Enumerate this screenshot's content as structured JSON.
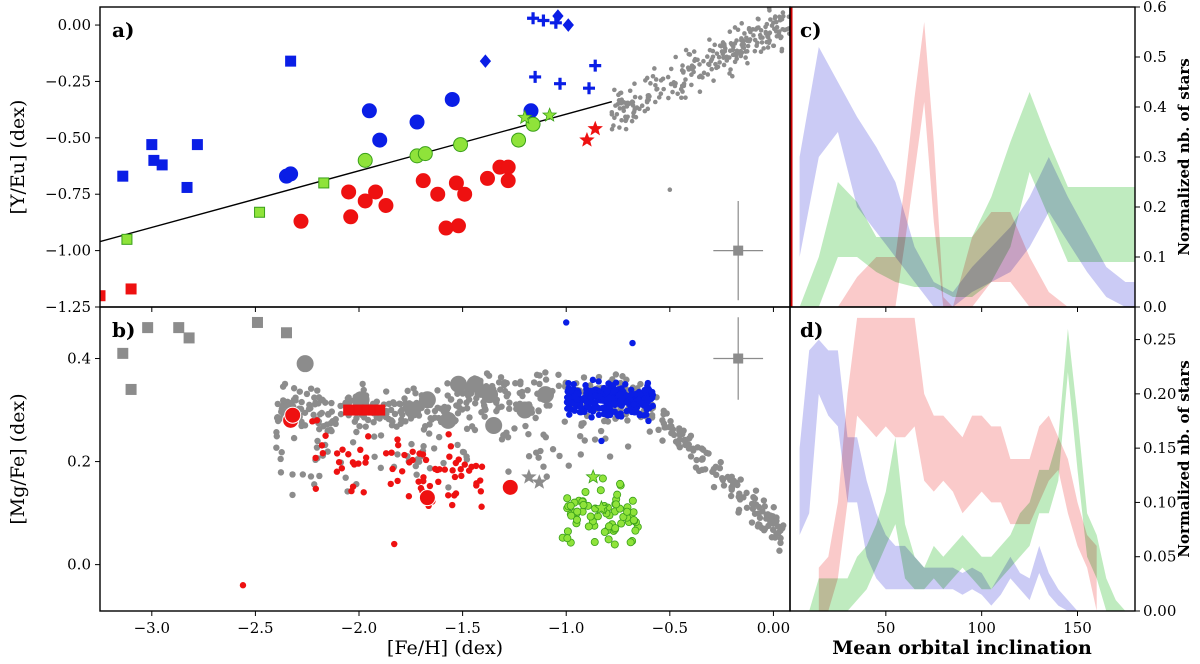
{
  "colors": {
    "blue": "#0a1ee6",
    "red": "#ee1111",
    "green": "#8fe33a",
    "green_edge": "#3aa01a",
    "gray": "#8c8c8c",
    "blue_band": "#b9b9f2",
    "red_band": "#f8b8b8",
    "green_band": "#a9e4a9",
    "olive_overlap": "#b7b38c"
  },
  "chart_data": [
    {
      "panel": "a)",
      "type": "scatter",
      "xlabel": "",
      "ylabel": "[Y/Eu] (dex)",
      "xlim": [
        -3.25,
        0.08
      ],
      "ylim": [
        -1.25,
        0.08
      ],
      "yticks": [
        "0.00",
        "−0.25",
        "−0.50",
        "−0.75",
        "−1.00",
        "−1.25"
      ],
      "fit_line": [
        [
          -3.25,
          -0.96
        ],
        [
          -0.78,
          -0.34
        ]
      ],
      "error_bar": {
        "x": -0.17,
        "y": -1.0,
        "dx": 0.12,
        "dy": 0.22
      },
      "series": [
        {
          "color": "blue",
          "marker": "square",
          "points": [
            [
              -3.14,
              -0.67
            ],
            [
              -3.0,
              -0.53
            ],
            [
              -2.99,
              -0.6
            ],
            [
              -2.95,
              -0.62
            ],
            [
              -2.83,
              -0.72
            ],
            [
              -2.78,
              -0.53
            ],
            [
              -2.33,
              -0.16
            ]
          ]
        },
        {
          "color": "blue",
          "marker": "circle",
          "points": [
            [
              -2.35,
              -0.67
            ],
            [
              -2.33,
              -0.66
            ],
            [
              -1.95,
              -0.38
            ],
            [
              -1.9,
              -0.51
            ],
            [
              -1.72,
              -0.43
            ],
            [
              -1.55,
              -0.33
            ],
            [
              -1.17,
              -0.38
            ]
          ]
        },
        {
          "color": "blue",
          "marker": "plus",
          "points": [
            [
              -1.16,
              0.03
            ],
            [
              -1.11,
              0.02
            ],
            [
              -1.05,
              0.01
            ],
            [
              -1.15,
              -0.23
            ],
            [
              -1.03,
              -0.26
            ],
            [
              -0.86,
              -0.18
            ],
            [
              -0.89,
              -0.28
            ]
          ]
        },
        {
          "color": "blue",
          "marker": "diamond",
          "points": [
            [
              -1.39,
              -0.16
            ],
            [
              -1.04,
              0.04
            ],
            [
              -0.99,
              0.0
            ]
          ]
        },
        {
          "color": "red",
          "marker": "square",
          "points": [
            [
              -3.25,
              -1.2
            ],
            [
              -3.1,
              -1.17
            ]
          ]
        },
        {
          "color": "red",
          "marker": "circle",
          "points": [
            [
              -2.28,
              -0.87
            ],
            [
              -2.05,
              -0.74
            ],
            [
              -2.04,
              -0.85
            ],
            [
              -1.97,
              -0.78
            ],
            [
              -1.92,
              -0.74
            ],
            [
              -1.69,
              -0.69
            ],
            [
              -1.62,
              -0.75
            ],
            [
              -1.53,
              -0.7
            ],
            [
              -1.49,
              -0.75
            ],
            [
              -1.38,
              -0.68
            ],
            [
              -1.28,
              -0.69
            ],
            [
              -1.58,
              -0.9
            ],
            [
              -1.52,
              -0.89
            ],
            [
              -1.87,
              -0.8
            ],
            [
              -1.32,
              -0.63
            ],
            [
              -1.28,
              -0.63
            ]
          ]
        },
        {
          "color": "red",
          "marker": "star",
          "points": [
            [
              -0.9,
              -0.51
            ],
            [
              -0.86,
              -0.46
            ]
          ]
        },
        {
          "color": "green",
          "marker": "square",
          "points": [
            [
              -3.12,
              -0.95
            ],
            [
              -2.48,
              -0.83
            ],
            [
              -2.17,
              -0.7
            ]
          ]
        },
        {
          "color": "green",
          "marker": "circle",
          "points": [
            [
              -1.97,
              -0.6
            ],
            [
              -1.72,
              -0.58
            ],
            [
              -1.68,
              -0.57
            ],
            [
              -1.51,
              -0.53
            ],
            [
              -1.23,
              -0.51
            ],
            [
              -1.16,
              -0.44
            ]
          ]
        },
        {
          "color": "green",
          "marker": "star",
          "points": [
            [
              -1.2,
              -0.41
            ],
            [
              -1.08,
              -0.4
            ]
          ]
        }
      ]
    },
    {
      "panel": "b)",
      "type": "scatter",
      "xlabel": "[Fe/H] (dex)",
      "ylabel": "[Mg/Fe] (dex)",
      "xlim": [
        -3.25,
        0.08
      ],
      "ylim": [
        -0.09,
        0.5
      ],
      "xticks": [
        "−3.0",
        "−2.5",
        "−2.0",
        "−1.5",
        "−1.0",
        "−0.5",
        "0.00"
      ],
      "yticks": [
        "0.0",
        "0.2",
        "0.4"
      ],
      "error_bar": {
        "x": -0.17,
        "y": 0.4,
        "dx": 0.12,
        "dy": 0.08
      },
      "series": [
        {
          "color": "gray",
          "marker": "square",
          "points": [
            [
              -3.14,
              0.41
            ],
            [
              -3.1,
              0.34
            ],
            [
              -3.02,
              0.46
            ],
            [
              -2.87,
              0.46
            ],
            [
              -2.82,
              0.44
            ],
            [
              -2.49,
              0.47
            ],
            [
              -2.35,
              0.45
            ]
          ]
        },
        {
          "color": "gray",
          "marker": "circle-big",
          "points": [
            [
              -2.26,
              0.39
            ],
            [
              -1.99,
              0.32
            ],
            [
              -1.67,
              0.32
            ],
            [
              -1.52,
              0.35
            ],
            [
              -1.44,
              0.35
            ],
            [
              -1.37,
              0.33
            ],
            [
              -1.57,
              0.28
            ],
            [
              -1.2,
              0.3
            ],
            [
              -1.1,
              0.33
            ],
            [
              -1.74,
              0.3
            ],
            [
              -1.35,
              0.27
            ]
          ]
        },
        {
          "color": "gray",
          "marker": "star",
          "points": [
            [
              -1.18,
              0.17
            ],
            [
              -1.13,
              0.16
            ]
          ]
        },
        {
          "color": "red",
          "marker": "circle-big",
          "points": [
            [
              -2.33,
              0.28
            ],
            [
              -2.32,
              0.29
            ],
            [
              -1.67,
              0.13
            ],
            [
              -1.27,
              0.15
            ]
          ]
        },
        {
          "color": "red",
          "marker": "square",
          "points": [
            [
              -2.05,
              0.3
            ],
            [
              -2.0,
              0.3
            ],
            [
              -1.96,
              0.3
            ],
            [
              -1.93,
              0.3
            ],
            [
              -1.9,
              0.3
            ]
          ]
        },
        {
          "color": "green",
          "marker": "star",
          "points": [
            [
              -0.87,
              0.17
            ],
            [
              -0.83,
              0.11
            ]
          ]
        }
      ]
    },
    {
      "panel": "c)",
      "type": "area",
      "xlabel": "",
      "ylabel": "Normalized nb. of stars",
      "xlim": [
        0,
        180
      ],
      "ylim": [
        0,
        0.6
      ],
      "yticks": [
        "0.0",
        "0.1",
        "0.2",
        "0.3",
        "0.4",
        "0.5",
        "0.6"
      ],
      "series": [
        {
          "color": "blue_band",
          "x": [
            5,
            15,
            25,
            35,
            45,
            55,
            65,
            75,
            85,
            95,
            105,
            115,
            125,
            135,
            145,
            155,
            165,
            175,
            180
          ],
          "upper": [
            0.3,
            0.52,
            0.45,
            0.38,
            0.32,
            0.25,
            0.12,
            0.05,
            0.03,
            0.08,
            0.12,
            0.16,
            0.22,
            0.3,
            0.22,
            0.15,
            0.08,
            0.05,
            0.05
          ],
          "lower": [
            0.1,
            0.3,
            0.35,
            0.2,
            0.15,
            0.1,
            0.05,
            0.0,
            0.0,
            0.03,
            0.05,
            0.07,
            0.12,
            0.19,
            0.13,
            0.07,
            0.02,
            0.0,
            0.0
          ]
        },
        {
          "color": "red_band",
          "x": [
            5,
            15,
            25,
            35,
            45,
            55,
            60,
            65,
            70,
            75,
            80,
            85,
            95,
            105,
            115,
            125,
            135,
            145,
            150
          ],
          "upper": [
            0.0,
            0.0,
            0.0,
            0.06,
            0.1,
            0.1,
            0.25,
            0.42,
            0.57,
            0.33,
            0.02,
            0.0,
            0.14,
            0.19,
            0.19,
            0.1,
            0.03,
            0.0,
            0.0
          ],
          "lower": [
            0.0,
            0.0,
            0.0,
            0.0,
            0.0,
            0.0,
            0.13,
            0.27,
            0.41,
            0.17,
            0.0,
            0.0,
            0.0,
            0.05,
            0.05,
            0.0,
            0.0,
            0.0,
            0.0
          ]
        },
        {
          "color": "green_band",
          "x": [
            5,
            15,
            25,
            35,
            45,
            55,
            65,
            75,
            85,
            95,
            105,
            115,
            125,
            135,
            145,
            155,
            165,
            175,
            180
          ],
          "upper": [
            0.0,
            0.1,
            0.25,
            0.21,
            0.14,
            0.14,
            0.14,
            0.14,
            0.14,
            0.14,
            0.22,
            0.33,
            0.43,
            0.33,
            0.24,
            0.24,
            0.24,
            0.24,
            0.24
          ],
          "lower": [
            0.0,
            0.0,
            0.1,
            0.1,
            0.07,
            0.05,
            0.04,
            0.04,
            0.02,
            0.02,
            0.05,
            0.12,
            0.27,
            0.18,
            0.09,
            0.09,
            0.09,
            0.09,
            0.09
          ]
        }
      ]
    },
    {
      "panel": "d)",
      "type": "area",
      "xlabel": "Mean orbital inclination",
      "ylabel": "Normalized nb. of stars",
      "xlim": [
        0,
        180
      ],
      "ylim": [
        0,
        0.28
      ],
      "xticks": [
        "50",
        "100",
        "150"
      ],
      "yticks": [
        "0.00",
        "0.05",
        "0.10",
        "0.15",
        "0.20",
        "0.25"
      ],
      "series": [
        {
          "color": "blue_band",
          "x": [
            5,
            10,
            15,
            20,
            25,
            30,
            35,
            40,
            45,
            50,
            55,
            60,
            65,
            70,
            75,
            80,
            85,
            90,
            95,
            100,
            105,
            110,
            115,
            120,
            125,
            130,
            135,
            140,
            145,
            150
          ],
          "upper": [
            0.15,
            0.24,
            0.25,
            0.24,
            0.24,
            0.16,
            0.16,
            0.12,
            0.09,
            0.07,
            0.06,
            0.06,
            0.05,
            0.04,
            0.04,
            0.04,
            0.04,
            0.035,
            0.04,
            0.035,
            0.02,
            0.035,
            0.05,
            0.035,
            0.03,
            0.06,
            0.035,
            0.02,
            0.01,
            0.0
          ],
          "lower": [
            0.07,
            0.09,
            0.2,
            0.18,
            0.17,
            0.1,
            0.1,
            0.05,
            0.03,
            0.02,
            0.02,
            0.02,
            0.02,
            0.02,
            0.02,
            0.02,
            0.02,
            0.015,
            0.02,
            0.015,
            0.005,
            0.015,
            0.03,
            0.02,
            0.01,
            0.035,
            0.015,
            0.005,
            0.0,
            0.0
          ]
        },
        {
          "color": "red_band",
          "x": [
            15,
            20,
            25,
            30,
            35,
            40,
            45,
            50,
            55,
            60,
            65,
            70,
            75,
            80,
            85,
            90,
            95,
            100,
            105,
            110,
            115,
            120,
            125,
            130,
            135,
            140,
            145,
            150,
            155,
            160
          ],
          "upper": [
            0.04,
            0.05,
            0.1,
            0.2,
            0.27,
            0.27,
            0.27,
            0.27,
            0.27,
            0.27,
            0.27,
            0.2,
            0.18,
            0.18,
            0.17,
            0.16,
            0.18,
            0.18,
            0.17,
            0.17,
            0.14,
            0.14,
            0.14,
            0.17,
            0.18,
            0.16,
            0.14,
            0.1,
            0.07,
            0.06
          ],
          "lower": [
            0.0,
            0.0,
            0.03,
            0.1,
            0.18,
            0.17,
            0.16,
            0.17,
            0.16,
            0.16,
            0.17,
            0.12,
            0.11,
            0.12,
            0.11,
            0.09,
            0.1,
            0.11,
            0.1,
            0.1,
            0.08,
            0.08,
            0.08,
            0.1,
            0.12,
            0.13,
            0.09,
            0.06,
            0.04,
            0.0
          ]
        },
        {
          "color": "green_band",
          "x": [
            5,
            10,
            15,
            20,
            25,
            30,
            35,
            40,
            45,
            50,
            55,
            60,
            65,
            70,
            75,
            80,
            85,
            90,
            95,
            100,
            105,
            110,
            115,
            120,
            125,
            130,
            135,
            140,
            145,
            150,
            155,
            160,
            165,
            170,
            175
          ],
          "upper": [
            0.0,
            0.0,
            0.03,
            0.03,
            0.03,
            0.03,
            0.05,
            0.06,
            0.08,
            0.11,
            0.16,
            0.08,
            0.05,
            0.04,
            0.06,
            0.05,
            0.06,
            0.07,
            0.06,
            0.05,
            0.05,
            0.06,
            0.07,
            0.09,
            0.1,
            0.13,
            0.13,
            0.16,
            0.26,
            0.18,
            0.09,
            0.07,
            0.03,
            0.01,
            0.0
          ],
          "lower": [
            0.0,
            0.0,
            0.0,
            0.0,
            0.0,
            0.0,
            0.01,
            0.02,
            0.04,
            0.06,
            0.08,
            0.03,
            0.02,
            0.02,
            0.03,
            0.02,
            0.03,
            0.04,
            0.03,
            0.02,
            0.02,
            0.03,
            0.04,
            0.05,
            0.06,
            0.09,
            0.09,
            0.12,
            0.22,
            0.13,
            0.05,
            0.03,
            0.0,
            0.0,
            0.0
          ]
        }
      ]
    }
  ]
}
